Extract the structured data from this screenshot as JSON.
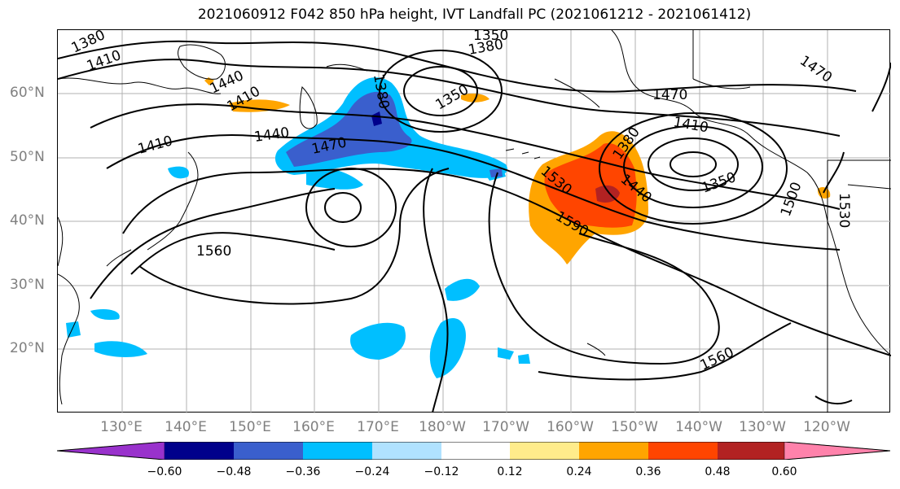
{
  "title": "2021060912 F042 850 hPa height, IVT Landfall PC (2021061212 - 2021061412)",
  "lat_labels": [
    "60°N",
    "50°N",
    "40°N",
    "30°N",
    "20°N"
  ],
  "lon_labels": [
    "130°E",
    "140°E",
    "150°E",
    "160°E",
    "170°E",
    "180°W",
    "170°W",
    "160°W",
    "150°W",
    "140°W",
    "130°W",
    "120°W"
  ],
  "contour_labels": [
    "1380",
    "1410",
    "1350",
    "1380",
    "1440",
    "1410",
    "1440",
    "1410",
    "1470",
    "1380",
    "1350",
    "1470",
    "1410",
    "1380",
    "1530",
    "1440",
    "1350",
    "1590",
    "1500",
    "1530",
    "1560",
    "1560",
    "1470"
  ],
  "colorbar": {
    "colors": [
      "#9932cc",
      "#00008b",
      "#3a5fcd",
      "#00bfff",
      "#b0e2ff",
      "#ffffff",
      "#ffec8b",
      "#ffa500",
      "#ff4500",
      "#b22222",
      "#ff82ab"
    ],
    "ticks": [
      "−0.60",
      "−0.48",
      "−0.36",
      "−0.24",
      "−0.12",
      "0.12",
      "0.24",
      "0.36",
      "0.48",
      "0.60"
    ]
  }
}
